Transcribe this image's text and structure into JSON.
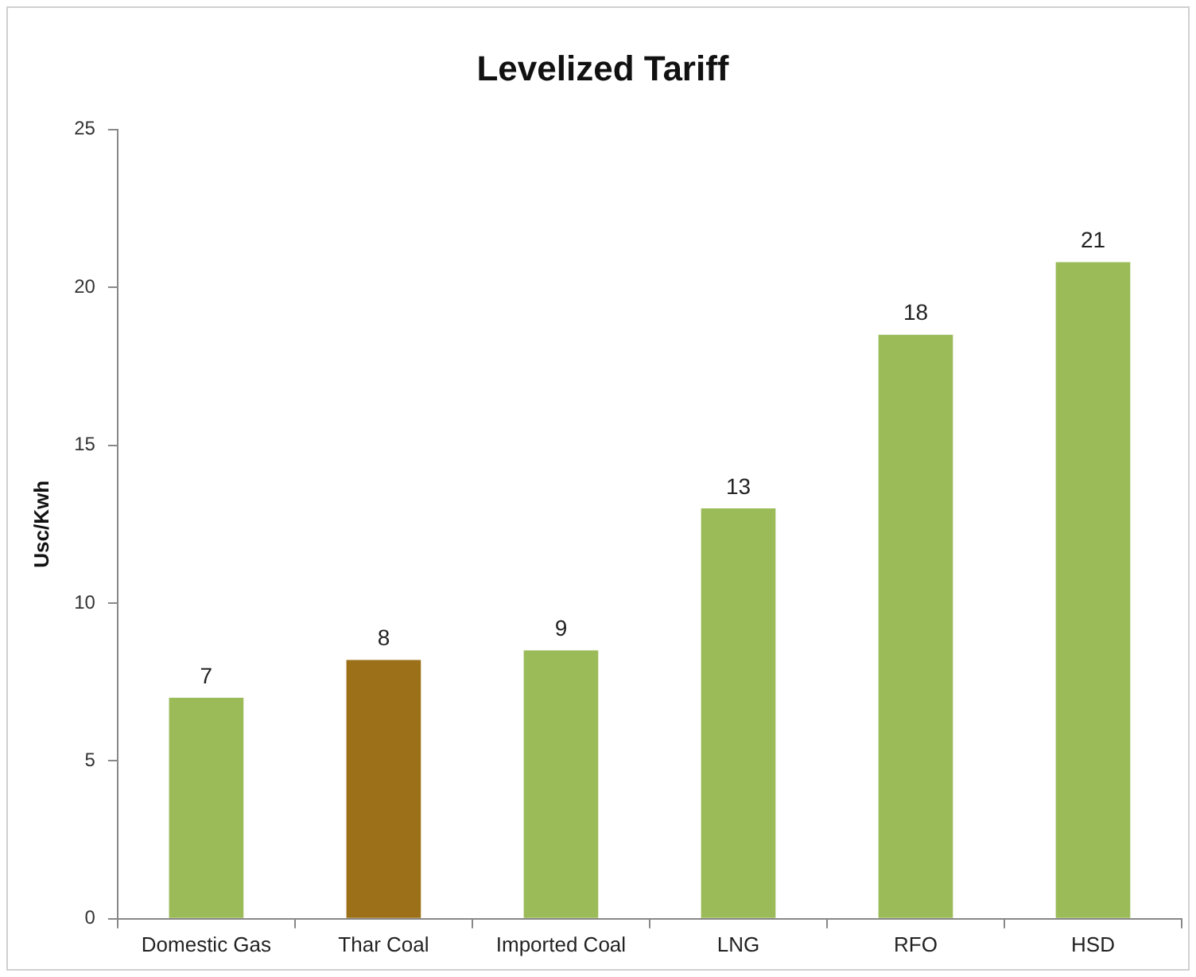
{
  "chart_data": {
    "type": "bar",
    "title": "Levelized Tariff",
    "ylabel": "Usc/Kwh",
    "categories": [
      "Domestic Gas",
      "Thar Coal",
      "Imported Coal",
      "LNG",
      "RFO",
      "HSD"
    ],
    "values": [
      7.0,
      8.2,
      8.5,
      13.0,
      18.5,
      20.8
    ],
    "colors": [
      "#9bbb59",
      "#9c7018",
      "#9bbb59",
      "#9bbb59",
      "#9bbb59",
      "#9bbb59"
    ],
    "value_labels": [
      "7",
      "8",
      "9",
      "13",
      "18",
      "21"
    ],
    "ylim": [
      0,
      25
    ],
    "yticks": [
      0,
      5,
      10,
      15,
      20,
      25
    ],
    "grid": false,
    "legend": false
  }
}
